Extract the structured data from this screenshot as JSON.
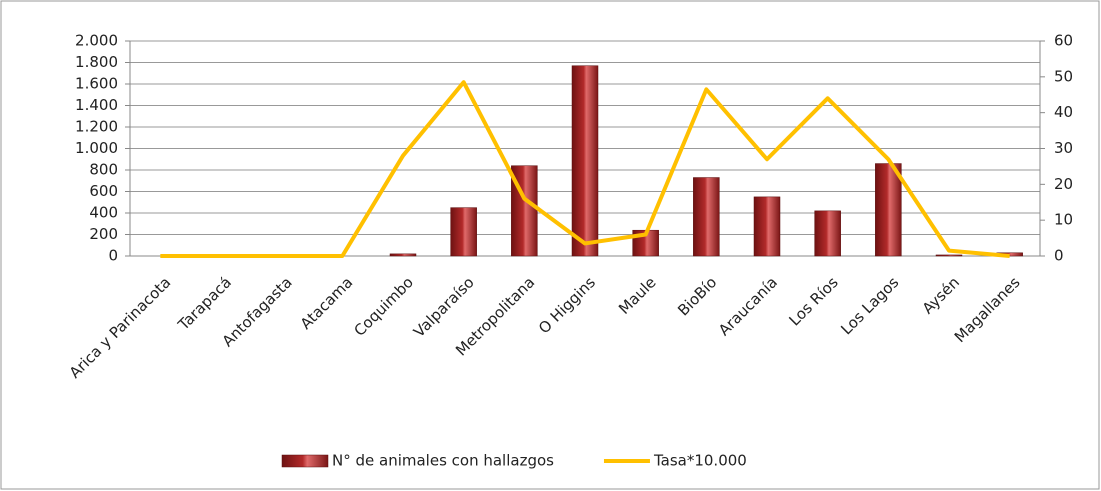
{
  "chart_data": {
    "type": "bar",
    "categories": [
      "Arica y Parinacota",
      "Tarapacá",
      "Antofagasta",
      "Atacama",
      "Coquimbo",
      "Valparaíso",
      "Metropolitana",
      "O Higgins",
      "Maule",
      "BioBío",
      "Araucanía",
      "Los Ríos",
      "Los Lagos",
      "Aysén",
      "Magallanes"
    ],
    "series": [
      {
        "name": "N° de animales con hallazgos",
        "type": "bar",
        "color": "#b22a2a",
        "values": [
          0,
          0,
          0,
          0,
          20,
          450,
          840,
          1770,
          240,
          730,
          550,
          420,
          860,
          10,
          30
        ]
      },
      {
        "name": "Tasa*10.000",
        "type": "line",
        "axis": "y2",
        "color": "#ffc000",
        "values": [
          0,
          0,
          0,
          0,
          28,
          48.5,
          16,
          3.5,
          6,
          46.5,
          27,
          44,
          27,
          1.5,
          0
        ]
      }
    ],
    "ylim": [
      0,
      2000
    ],
    "yticks": [
      0,
      200,
      400,
      600,
      800,
      {
        "value": 1000,
        "label": "1.000"
      },
      {
        "value": 1200,
        "label": "1.200"
      },
      {
        "value": 1400,
        "label": "1.400"
      },
      {
        "value": 1600,
        "label": "1.600"
      },
      {
        "value": 1800,
        "label": "1.800"
      },
      {
        "value": 2000,
        "label": "2.000"
      }
    ],
    "y2lim": [
      0,
      60
    ],
    "y2ticks": [
      0,
      10,
      20,
      30,
      40,
      50,
      60
    ],
    "grid": true,
    "legend": "bottom"
  }
}
